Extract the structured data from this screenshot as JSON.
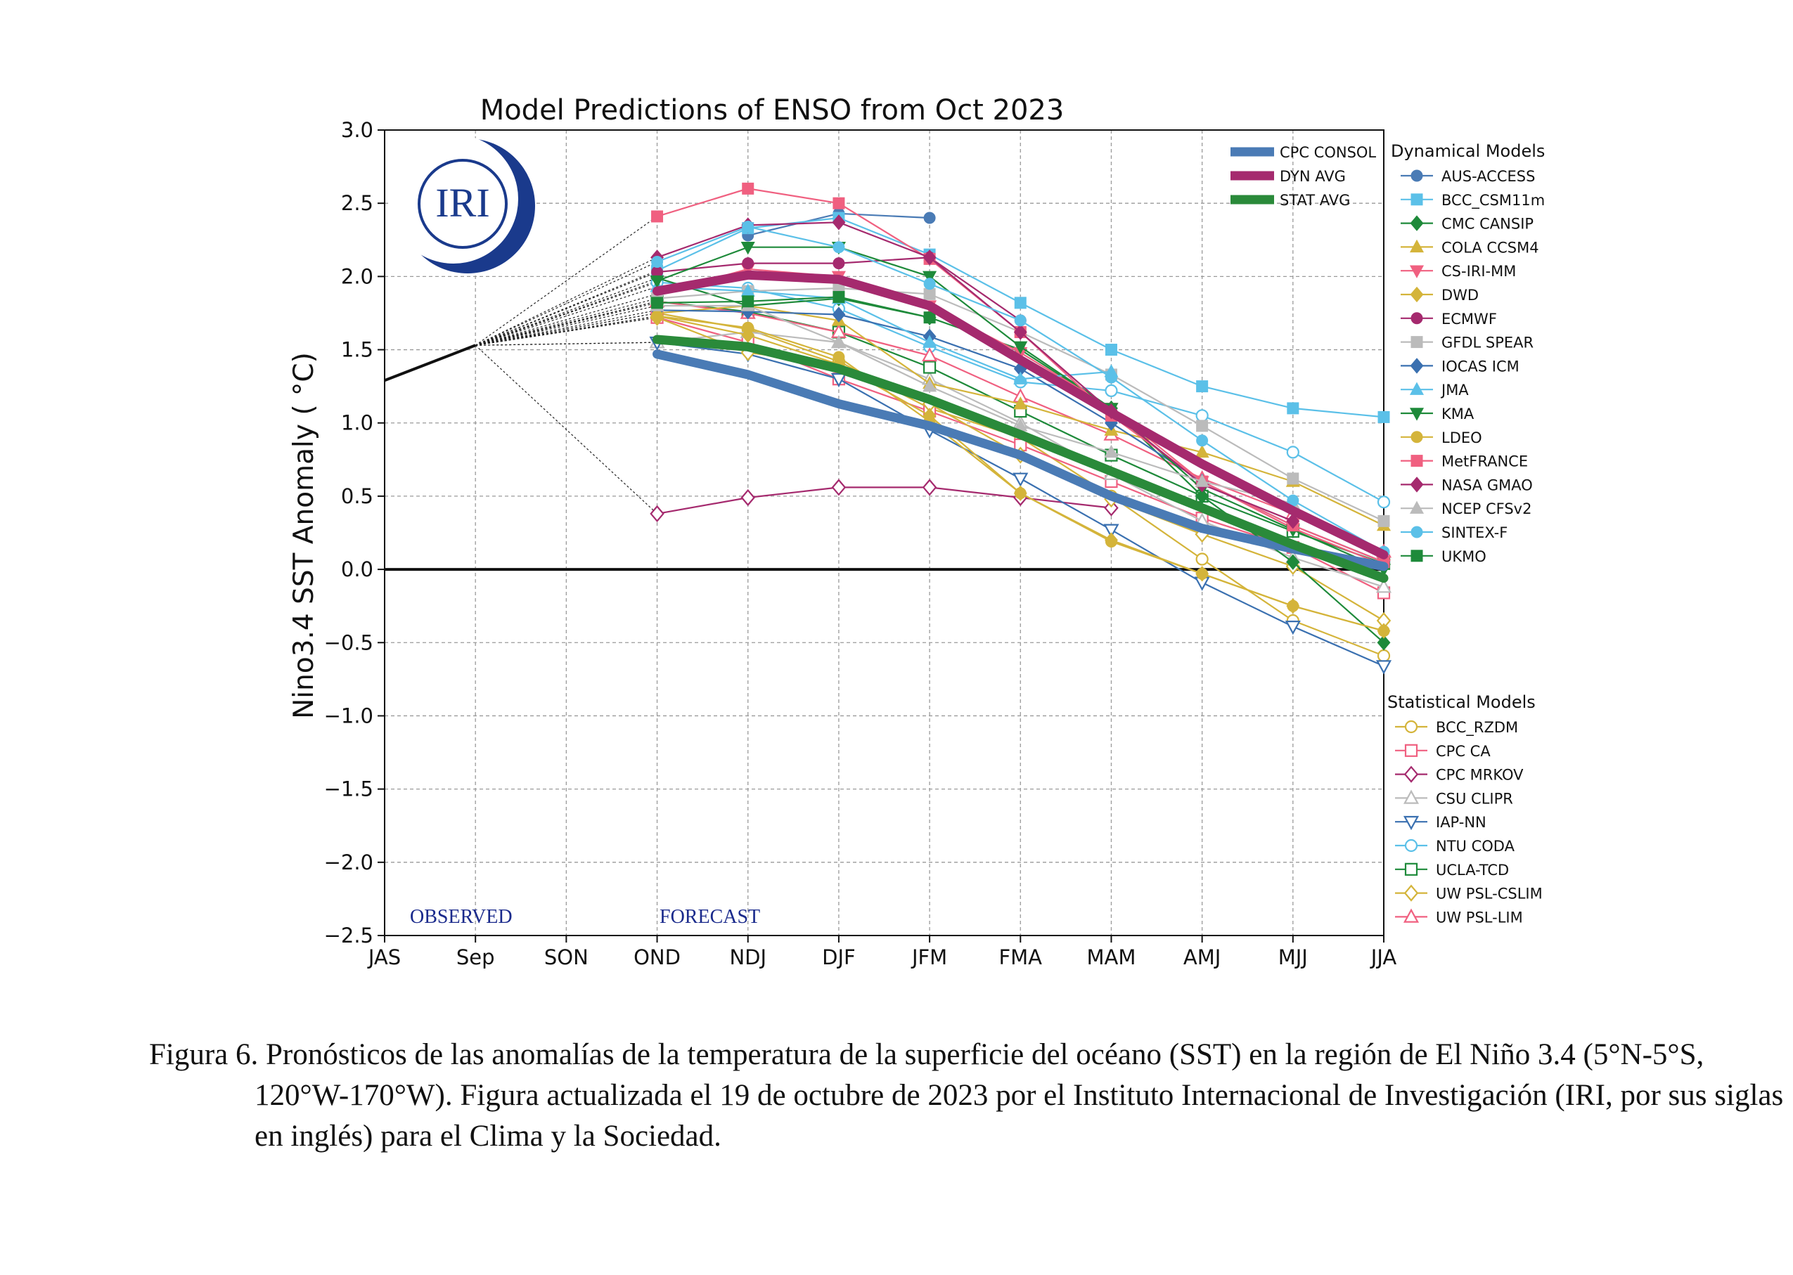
{
  "title": "Model Predictions of ENSO from Oct 2023",
  "ylabel": "Nino3.4 SST Anomaly ( °C)",
  "logo_text": "IRI",
  "observed_label": "OBSERVED",
  "forecast_label": "FORECAST",
  "caption": "Figura 6. Pronósticos de las anomalías de la temperatura de la superficie del océano (SST) en la región de El Niño 3.4 (5°N-5°S, 120°W-170°W). Figura actualizada el 19 de octubre de 2023 por el Instituto Internacional de Investigación (IRI, por sus siglas en inglés) para el Clima y la Sociedad.",
  "chart_data": {
    "type": "line",
    "title": "Model Predictions of ENSO from Oct 2023",
    "xlabel": "",
    "ylabel": "Nino3.4 SST Anomaly ( °C)",
    "categories": [
      "JAS",
      "Sep",
      "SON",
      "OND",
      "NDJ",
      "DJF",
      "JFM",
      "FMA",
      "MAM",
      "AMJ",
      "MJJ",
      "JJA"
    ],
    "ylim": [
      -2.5,
      3.0
    ],
    "yticks": [
      -2.5,
      -2.0,
      -1.5,
      -1.0,
      -0.5,
      0.0,
      0.5,
      1.0,
      1.5,
      2.0,
      2.5,
      3.0
    ],
    "ytick_labels": [
      "−2.5",
      "−2.0",
      "−1.5",
      "−1.0",
      "−0.5",
      "0.0",
      "0.5",
      "1.0",
      "1.5",
      "2.0",
      "2.5",
      "3.0"
    ],
    "grid": true,
    "observed": [
      1.29,
      1.53
    ],
    "legend_groups": {
      "averages": "",
      "dynamical": "Dynamical Models",
      "statistical": "Statistical Models"
    },
    "averages": [
      {
        "name": "CPC CONSOL",
        "color": "#4a7bb5",
        "values": [
          1.47,
          1.33,
          1.13,
          0.98,
          0.78,
          0.5,
          0.28,
          0.14,
          0.02
        ]
      },
      {
        "name": "DYN AVG",
        "color": "#a52a6e",
        "values": [
          1.9,
          2.01,
          1.98,
          1.8,
          1.43,
          1.07,
          0.72,
          0.4,
          0.1
        ]
      },
      {
        "name": "STAT AVG",
        "color": "#2a8a3a",
        "values": [
          1.57,
          1.52,
          1.37,
          1.16,
          0.92,
          0.67,
          0.42,
          0.17,
          -0.06
        ]
      }
    ],
    "dynamical": [
      {
        "name": "AUS-ACCESS",
        "color": "#4a7bb5",
        "marker": "circle",
        "fill": true,
        "values": [
          null,
          2.28,
          2.43,
          2.4,
          null,
          null,
          null,
          null,
          null
        ]
      },
      {
        "name": "BCC_CSM11m",
        "color": "#5bc0e8",
        "marker": "square",
        "fill": true,
        "values": [
          2.04,
          2.33,
          2.4,
          2.15,
          1.82,
          1.5,
          1.25,
          1.1,
          1.04
        ]
      },
      {
        "name": "CMC CANSIP",
        "color": "#1e8a3a",
        "marker": "diamond",
        "fill": true,
        "values": [
          1.99,
          1.8,
          1.85,
          1.72,
          1.5,
          1.1,
          0.5,
          0.05,
          -0.5
        ]
      },
      {
        "name": "COLA CCSM4",
        "color": "#d4b43a",
        "marker": "triangle-up",
        "fill": true,
        "values": [
          1.75,
          1.8,
          1.7,
          1.27,
          1.13,
          0.95,
          0.8,
          0.6,
          0.3
        ]
      },
      {
        "name": "CS-IRI-MM",
        "color": "#f06080",
        "marker": "triangle-down",
        "fill": true,
        "values": [
          1.88,
          2.05,
          2.0,
          1.8,
          1.48,
          1.1,
          0.6,
          0.28,
          0.03
        ]
      },
      {
        "name": "DWD",
        "color": "#d4b43a",
        "marker": "diamond",
        "fill": true,
        "values": [
          1.73,
          1.6,
          1.4,
          1.05,
          0.52,
          0.2,
          -0.03,
          -0.25,
          -0.42
        ]
      },
      {
        "name": "ECMWF",
        "color": "#a52a6e",
        "marker": "circle",
        "fill": true,
        "values": [
          2.03,
          2.09,
          2.09,
          2.13,
          1.7,
          null,
          null,
          null,
          null
        ]
      },
      {
        "name": "GFDL SPEAR",
        "color": "#bbbbbb",
        "marker": "square",
        "fill": true,
        "values": [
          1.85,
          1.9,
          1.92,
          1.88,
          1.62,
          1.33,
          0.98,
          0.62,
          0.33
        ]
      },
      {
        "name": "IOCAS ICM",
        "color": "#3a70b0",
        "marker": "diamond",
        "fill": true,
        "values": [
          1.77,
          1.76,
          1.74,
          1.59,
          1.37,
          1.0,
          0.6,
          0.3,
          0.05
        ]
      },
      {
        "name": "JMA",
        "color": "#5bc0e8",
        "marker": "triangle-up",
        "fill": true,
        "values": [
          1.93,
          1.9,
          1.85,
          1.55,
          1.3,
          1.35,
          null,
          null,
          null
        ]
      },
      {
        "name": "KMA",
        "color": "#1e8a3a",
        "marker": "triangle-down",
        "fill": true,
        "values": [
          1.97,
          2.2,
          2.2,
          2.0,
          1.52,
          1.1,
          0.55,
          0.27,
          0.0
        ]
      },
      {
        "name": "LDEO",
        "color": "#d4b43a",
        "marker": "circle",
        "fill": true,
        "values": [
          1.73,
          1.65,
          1.45,
          1.01,
          0.52,
          0.19,
          -0.03,
          -0.25,
          -0.42
        ]
      },
      {
        "name": "MetFRANCE",
        "color": "#f06080",
        "marker": "square",
        "fill": true,
        "values": [
          2.41,
          2.6,
          2.5,
          2.12,
          1.62,
          1.05,
          0.6,
          0.3,
          0.05
        ]
      },
      {
        "name": "NASA GMAO",
        "color": "#a52a6e",
        "marker": "diamond",
        "fill": true,
        "values": [
          2.13,
          2.35,
          2.37,
          2.13,
          1.62,
          1.08,
          0.58,
          0.33,
          null
        ]
      },
      {
        "name": "NCEP CFSv2",
        "color": "#bbbbbb",
        "marker": "triangle-up",
        "fill": true,
        "values": [
          1.8,
          1.8,
          1.55,
          1.25,
          0.98,
          0.8,
          0.6,
          0.45,
          null
        ]
      },
      {
        "name": "SINTEX-F",
        "color": "#5bc0e8",
        "marker": "circle",
        "fill": true,
        "values": [
          2.1,
          2.34,
          2.2,
          1.95,
          1.7,
          1.31,
          0.88,
          0.47,
          0.12
        ]
      },
      {
        "name": "UKMO",
        "color": "#1e8a3a",
        "marker": "square",
        "fill": true,
        "values": [
          1.82,
          1.83,
          1.86,
          1.72,
          null,
          null,
          null,
          null,
          null
        ]
      }
    ],
    "statistical": [
      {
        "name": "BCC_RZDM",
        "color": "#d4b43a",
        "marker": "circle",
        "fill": false,
        "values": [
          1.75,
          1.64,
          1.42,
          1.1,
          0.9,
          0.5,
          0.07,
          -0.35,
          -0.59
        ]
      },
      {
        "name": "CPC CA",
        "color": "#f06080",
        "marker": "square",
        "fill": false,
        "values": [
          1.72,
          1.55,
          1.3,
          1.08,
          0.85,
          0.6,
          0.35,
          0.15,
          -0.16
        ]
      },
      {
        "name": "CPC MRKOV",
        "color": "#a52a6e",
        "marker": "diamond",
        "fill": false,
        "values": [
          0.38,
          0.49,
          0.56,
          0.56,
          0.49,
          0.42,
          null,
          null,
          null
        ]
      },
      {
        "name": "CSU CLIPR",
        "color": "#bbbbbb",
        "marker": "triangle-up",
        "fill": false,
        "values": [
          1.55,
          1.62,
          1.55,
          1.3,
          1.0,
          0.65,
          0.33,
          0.08,
          -0.12
        ]
      },
      {
        "name": "IAP-NN",
        "color": "#3a70b0",
        "marker": "triangle-down",
        "fill": false,
        "values": [
          1.55,
          1.47,
          1.3,
          0.95,
          0.62,
          0.27,
          -0.09,
          -0.39,
          -0.66
        ]
      },
      {
        "name": "NTU CODA",
        "color": "#5bc0e8",
        "marker": "circle",
        "fill": false,
        "values": [
          1.96,
          1.92,
          1.78,
          1.52,
          1.28,
          1.22,
          1.05,
          0.8,
          0.46
        ]
      },
      {
        "name": "UCLA-TCD",
        "color": "#1e8a3a",
        "marker": "square",
        "fill": false,
        "values": [
          1.83,
          1.76,
          1.62,
          1.38,
          1.08,
          0.78,
          0.5,
          0.26,
          0.04
        ]
      },
      {
        "name": "UW PSL-CSLIM",
        "color": "#d4b43a",
        "marker": "diamond",
        "fill": false,
        "values": [
          1.72,
          1.48,
          1.4,
          1.13,
          0.78,
          0.48,
          0.24,
          0.02,
          -0.35
        ]
      },
      {
        "name": "UW PSL-LIM",
        "color": "#f06080",
        "marker": "triangle-up",
        "fill": false,
        "values": [
          1.83,
          1.75,
          1.62,
          1.46,
          1.18,
          0.92,
          0.62,
          0.38,
          0.12
        ]
      }
    ]
  }
}
